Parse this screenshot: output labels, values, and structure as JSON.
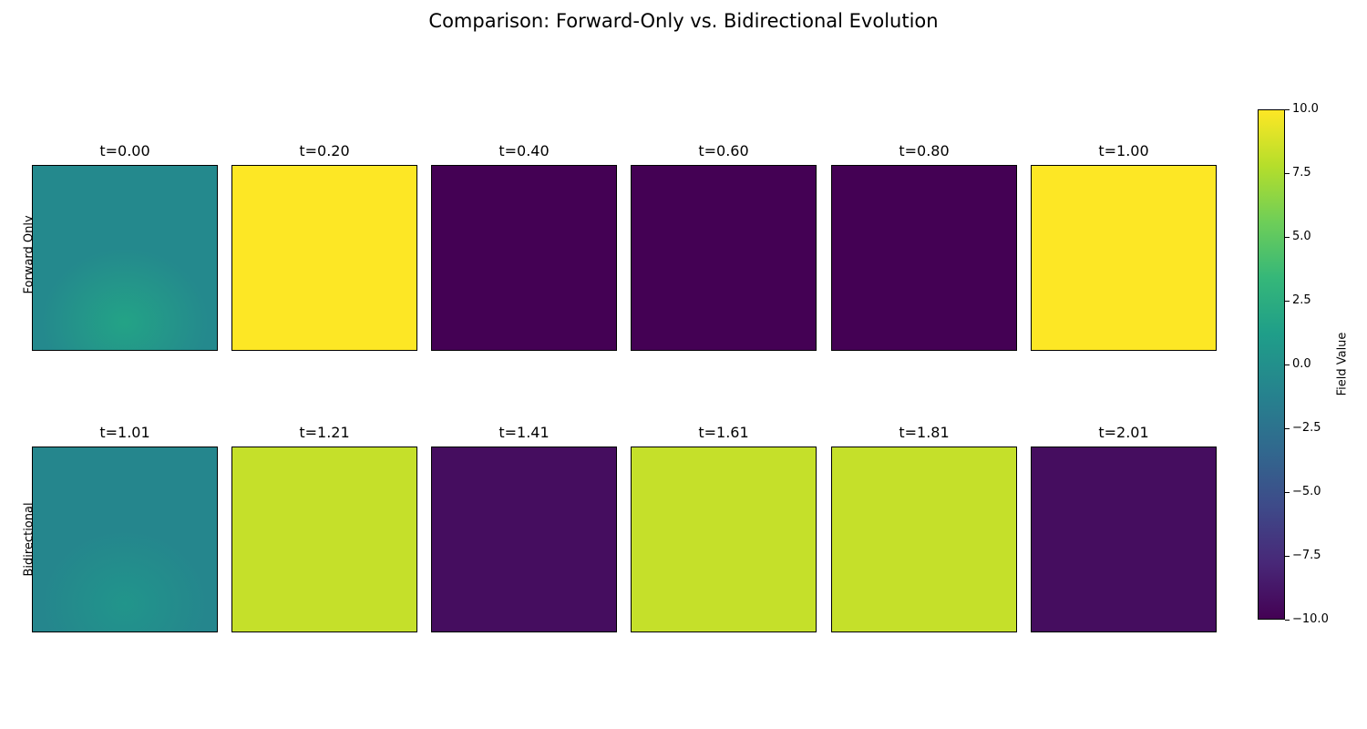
{
  "title": "Comparison: Forward-Only vs. Bidirectional Evolution",
  "chart_data": {
    "type": "heatmap",
    "title": "Comparison: Forward-Only vs. Bidirectional Evolution",
    "colormap": "viridis",
    "clim": [
      -10,
      10
    ],
    "rows": [
      {
        "label": "Forward Only",
        "panels": [
          {
            "title": "t=0.00",
            "base_value": -0.6,
            "blob_value": 1.6
          },
          {
            "title": "t=0.20",
            "base_value": 10.0
          },
          {
            "title": "t=0.40",
            "base_value": -10.0
          },
          {
            "title": "t=0.60",
            "base_value": -10.0
          },
          {
            "title": "t=0.80",
            "base_value": -10.0
          },
          {
            "title": "t=1.00",
            "base_value": 10.0
          }
        ]
      },
      {
        "label": "Bidirectional",
        "panels": [
          {
            "title": "t=1.01",
            "base_value": -0.9,
            "blob_value": 0.4
          },
          {
            "title": "t=1.21",
            "base_value": 8.3
          },
          {
            "title": "t=1.41",
            "base_value": -9.3
          },
          {
            "title": "t=1.61",
            "base_value": 8.3
          },
          {
            "title": "t=1.81",
            "base_value": 8.3
          },
          {
            "title": "t=2.01",
            "base_value": -9.3
          }
        ]
      }
    ],
    "colorbar": {
      "label": "Field Value",
      "ticks": [
        10.0,
        7.5,
        5.0,
        2.5,
        0.0,
        -2.5,
        -5.0,
        -7.5,
        -10.0
      ],
      "tick_labels": [
        "10.0",
        "7.5",
        "5.0",
        "2.5",
        "0.0",
        "−2.5",
        "−5.0",
        "−7.5",
        "−10.0"
      ]
    }
  }
}
